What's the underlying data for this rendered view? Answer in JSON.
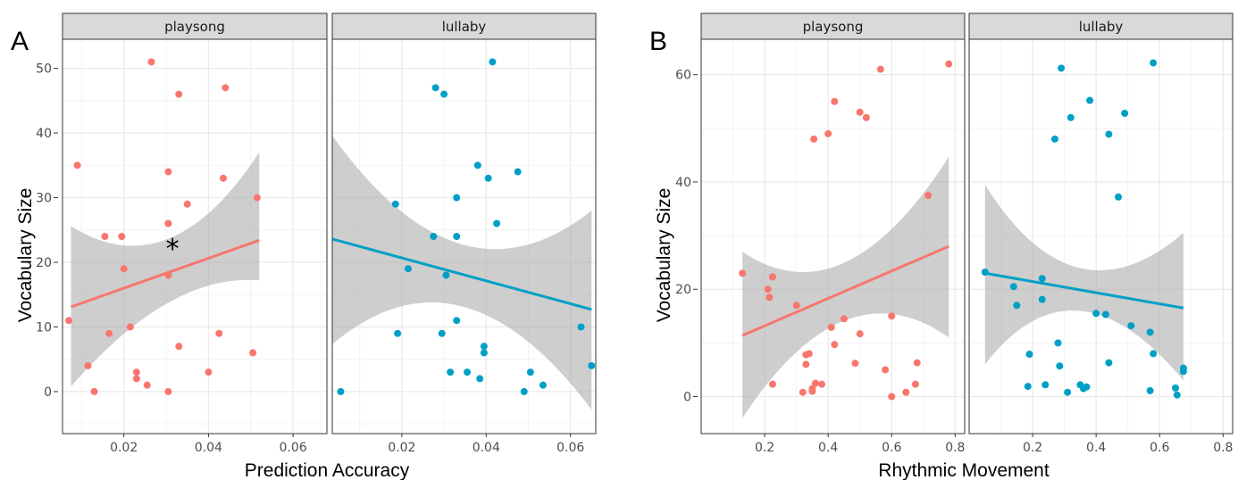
{
  "colors": {
    "playsong": "#F8766D",
    "lullaby": "#00A0C6",
    "ribbon": "#A6A6A6",
    "strip": "#D9D9D9",
    "grid": "#EBEBEB"
  },
  "chart_data": [
    {
      "type": "scatter",
      "label": "A",
      "xlabel": "Prediction Accuracy",
      "ylabel": "Vocabulary Size",
      "ylim": [
        -6.5,
        54.5
      ],
      "yticks": [
        0,
        10,
        20,
        30,
        40,
        50
      ],
      "annotation": "*",
      "annotation_at": {
        "facet": "playsong",
        "x": 0.0315,
        "y": 22.6
      },
      "facets": [
        {
          "name": "playsong",
          "xlim": [
            0.0055,
            0.068
          ],
          "xticks": [
            0.02,
            0.04,
            0.06
          ],
          "xtick_labels": [
            "0.02",
            "0.04",
            "0.06"
          ],
          "trend": {
            "x": [
              0.0075,
              0.052
            ],
            "y": [
              13.1,
              23.4
            ],
            "ci_low": [
              0.8,
              17.2
            ],
            "ci_high": [
              25.6,
              37.0
            ],
            "ci_mid": {
              "x": 0.031,
              "low": 13.7,
              "high": 23.6
            }
          },
          "points": [
            [
              0.0265,
              51
            ],
            [
              0.033,
              46
            ],
            [
              0.044,
              47
            ],
            [
              0.009,
              35
            ],
            [
              0.0305,
              34
            ],
            [
              0.0435,
              33
            ],
            [
              0.0515,
              30
            ],
            [
              0.035,
              29
            ],
            [
              0.0305,
              26
            ],
            [
              0.0155,
              24
            ],
            [
              0.0195,
              24
            ],
            [
              0.02,
              19
            ],
            [
              0.0305,
              18
            ],
            [
              0.0215,
              10
            ],
            [
              0.0165,
              9
            ],
            [
              0.0425,
              9
            ],
            [
              0.033,
              7
            ],
            [
              0.0505,
              6
            ],
            [
              0.0115,
              4
            ],
            [
              0.04,
              3
            ],
            [
              0.023,
              3
            ],
            [
              0.023,
              2
            ],
            [
              0.0255,
              1
            ],
            [
              0.013,
              0
            ],
            [
              0.0305,
              0
            ],
            [
              0.007,
              11
            ]
          ]
        },
        {
          "name": "lullaby",
          "xlim": [
            0.0035,
            0.066
          ],
          "xticks": [
            0.02,
            0.04,
            0.06
          ],
          "xtick_labels": [
            "0.02",
            "0.04",
            "0.06"
          ],
          "trend": {
            "x": [
              0.0035,
              0.065
            ],
            "y": [
              23.6,
              12.7
            ],
            "ci_low": [
              7.3,
              -2.8
            ],
            "ci_high": [
              39.6,
              28.0
            ],
            "ci_mid": {
              "x": 0.034,
              "low": 13.2,
              "high": 22.8
            }
          },
          "points": [
            [
              0.0415,
              51
            ],
            [
              0.028,
              47
            ],
            [
              0.03,
              46
            ],
            [
              0.038,
              35
            ],
            [
              0.0475,
              34
            ],
            [
              0.0405,
              33
            ],
            [
              0.033,
              30
            ],
            [
              0.0185,
              29
            ],
            [
              0.0425,
              26
            ],
            [
              0.0275,
              24
            ],
            [
              0.033,
              24
            ],
            [
              0.0215,
              19
            ],
            [
              0.0305,
              18
            ],
            [
              0.033,
              11
            ],
            [
              0.0625,
              10
            ],
            [
              0.019,
              9
            ],
            [
              0.0295,
              9
            ],
            [
              0.0395,
              7
            ],
            [
              0.0395,
              6
            ],
            [
              0.065,
              4
            ],
            [
              0.0315,
              3
            ],
            [
              0.0355,
              3
            ],
            [
              0.0505,
              3
            ],
            [
              0.0385,
              2
            ],
            [
              0.0535,
              1
            ],
            [
              0.049,
              0
            ],
            [
              0.0055,
              0
            ]
          ]
        }
      ]
    },
    {
      "type": "scatter",
      "label": "B",
      "xlabel": "Rhythmic Movement",
      "ylabel": "Vocabulary Size",
      "ylim": [
        -6.9,
        66.6
      ],
      "yticks": [
        0,
        20,
        40,
        60
      ],
      "facets": [
        {
          "name": "playsong",
          "xlim": [
            0.0,
            0.83
          ],
          "xticks": [
            0.2,
            0.4,
            0.6,
            0.8
          ],
          "xtick_labels": [
            "0.2",
            "0.4",
            "0.6",
            "0.8"
          ],
          "trend": {
            "x": [
              0.13,
              0.78
            ],
            "y": [
              11.4,
              28.0
            ],
            "ci_low": [
              -4.0,
              11.0
            ],
            "ci_high": [
              27.0,
              44.7
            ],
            "ci_mid": {
              "x": 0.45,
              "low": 14.2,
              "high": 25.0
            }
          },
          "points": [
            [
              0.78,
              62
            ],
            [
              0.565,
              61
            ],
            [
              0.42,
              55
            ],
            [
              0.5,
              53
            ],
            [
              0.52,
              52
            ],
            [
              0.4,
              49
            ],
            [
              0.355,
              48
            ],
            [
              0.715,
              37.5
            ],
            [
              0.13,
              23
            ],
            [
              0.225,
              22.3
            ],
            [
              0.21,
              20
            ],
            [
              0.215,
              18.5
            ],
            [
              0.3,
              17
            ],
            [
              0.6,
              15
            ],
            [
              0.45,
              14.5
            ],
            [
              0.41,
              12.9
            ],
            [
              0.5,
              11.7
            ],
            [
              0.42,
              9.7
            ],
            [
              0.34,
              8
            ],
            [
              0.33,
              7.8
            ],
            [
              0.68,
              6.3
            ],
            [
              0.485,
              6.2
            ],
            [
              0.33,
              6
            ],
            [
              0.58,
              5
            ],
            [
              0.36,
              2.5
            ],
            [
              0.38,
              2.3
            ],
            [
              0.225,
              2.3
            ],
            [
              0.35,
              1.5
            ],
            [
              0.675,
              2.3
            ],
            [
              0.35,
              1
            ],
            [
              0.32,
              0.8
            ],
            [
              0.645,
              0.8
            ],
            [
              0.6,
              0
            ]
          ]
        },
        {
          "name": "lullaby",
          "xlim": [
            0.0,
            0.83
          ],
          "xticks": [
            0.2,
            0.4,
            0.6,
            0.8
          ],
          "xtick_labels": [
            "0.2",
            "0.4",
            "0.6",
            "0.8"
          ],
          "trend": {
            "x": [
              0.05,
              0.675
            ],
            "y": [
              23.0,
              16.5
            ],
            "ci_low": [
              6.0,
              3.0
            ],
            "ci_high": [
              39.5,
              30.5
            ],
            "ci_mid": {
              "x": 0.33,
              "low": 16.0,
              "high": 24.0
            }
          },
          "points": [
            [
              0.29,
              61.2
            ],
            [
              0.58,
              62.2
            ],
            [
              0.38,
              55.2
            ],
            [
              0.32,
              52
            ],
            [
              0.49,
              52.8
            ],
            [
              0.44,
              48.9
            ],
            [
              0.27,
              48
            ],
            [
              0.47,
              37.2
            ],
            [
              0.05,
              23.2
            ],
            [
              0.23,
              22
            ],
            [
              0.14,
              20.5
            ],
            [
              0.23,
              18.1
            ],
            [
              0.15,
              17
            ],
            [
              0.4,
              15.5
            ],
            [
              0.43,
              15.3
            ],
            [
              0.51,
              13.2
            ],
            [
              0.57,
              12
            ],
            [
              0.28,
              10
            ],
            [
              0.58,
              8
            ],
            [
              0.19,
              7.9
            ],
            [
              0.44,
              6.3
            ],
            [
              0.675,
              5.3
            ],
            [
              0.675,
              4.7
            ],
            [
              0.285,
              5.7
            ],
            [
              0.24,
              2.2
            ],
            [
              0.185,
              1.9
            ],
            [
              0.35,
              2.2
            ],
            [
              0.36,
              1.5
            ],
            [
              0.37,
              1.8
            ],
            [
              0.65,
              1.6
            ],
            [
              0.31,
              0.8
            ],
            [
              0.57,
              1.1
            ],
            [
              0.655,
              0.3
            ]
          ]
        }
      ]
    }
  ]
}
